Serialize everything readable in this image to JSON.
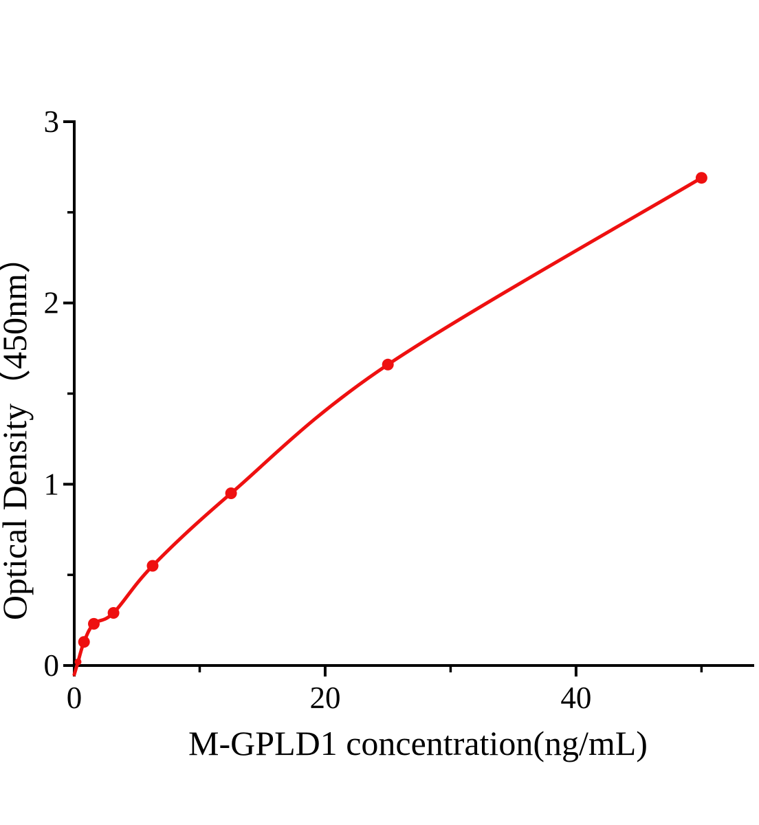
{
  "chart_data": {
    "type": "scatter",
    "title": "",
    "xlabel": "M-GPLD1 concentration(ng/mL)",
    "ylabel": "Optical Density（450nm）",
    "points": [
      {
        "x": 0.3,
        "y": 0.02
      },
      {
        "x": 0.78,
        "y": 0.13
      },
      {
        "x": 1.56,
        "y": 0.23
      },
      {
        "x": 3.13,
        "y": 0.29
      },
      {
        "x": 6.25,
        "y": 0.55
      },
      {
        "x": 12.5,
        "y": 0.95
      },
      {
        "x": 25,
        "y": 1.66
      },
      {
        "x": 50,
        "y": 2.69
      }
    ],
    "curve_start": {
      "x": 0,
      "y": -0.05
    },
    "xlim": [
      0,
      54.2
    ],
    "ylim": [
      0,
      3
    ],
    "x_major_ticks": [
      0,
      20,
      40
    ],
    "x_minor_ticks": [
      10,
      30,
      50
    ],
    "y_major_ticks": [
      0,
      1,
      2,
      3
    ],
    "y_minor_ticks": [
      0.5,
      1.5,
      2.5
    ],
    "grid": false,
    "legend": "none",
    "line_color": "#ee1010",
    "marker_color": "#ee1010",
    "axis_color": "#000000",
    "background": "#ffffff"
  }
}
